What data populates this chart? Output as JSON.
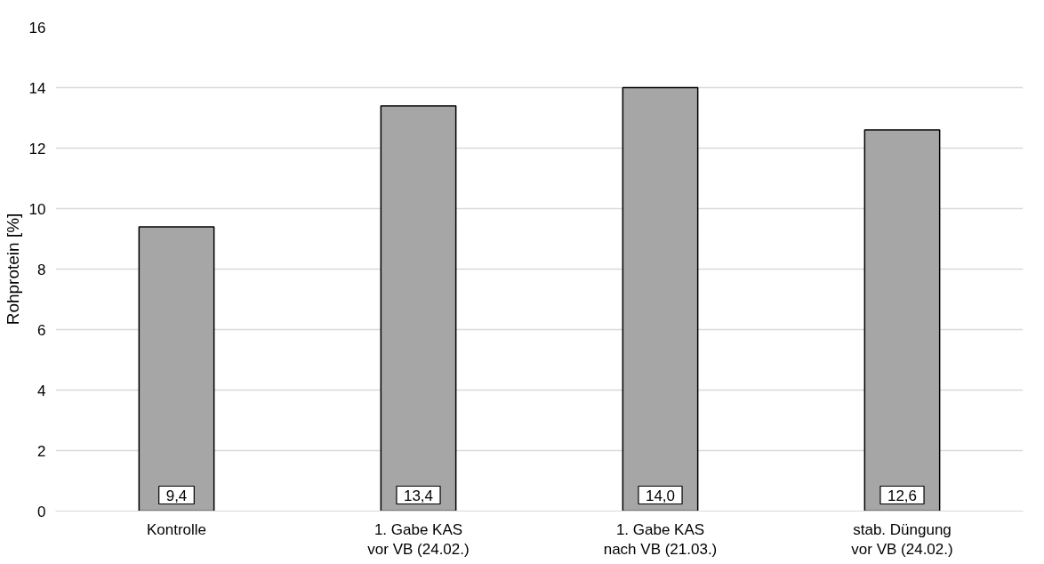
{
  "chart_data": {
    "type": "bar",
    "ylabel": "Rohprotein [%]",
    "categories": [
      "Kontrolle",
      "1. Gabe KAS\nvor VB (24.02.)",
      "1. Gabe KAS\nnach VB (21.03.)",
      "stab. Düngung\nvor VB (24.02.)"
    ],
    "values": [
      9.4,
      13.4,
      14.0,
      12.6
    ],
    "value_labels": [
      "9,4",
      "13,4",
      "14,0",
      "12,6"
    ],
    "color": "#a6a6a6",
    "ylim": [
      0,
      16
    ],
    "yticks": [
      0,
      2,
      4,
      6,
      8,
      10,
      12,
      14,
      16
    ],
    "grid": "y"
  }
}
